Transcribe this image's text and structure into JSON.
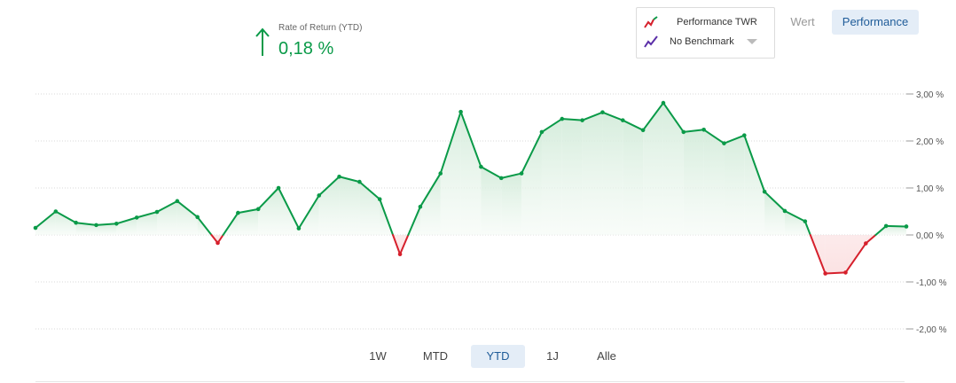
{
  "kpi": {
    "label": "Rate of Return (YTD)",
    "value": "0,18 %",
    "trend_icon": "arrow-up-icon",
    "color": "#0a9a48"
  },
  "legend": {
    "items": [
      {
        "label": "Performance TWR",
        "icon": "line-chart-icon"
      },
      {
        "label": "No Benchmark",
        "icon": "line-chart-icon"
      }
    ]
  },
  "view_toggle": {
    "wert_label": "Wert",
    "performance_label": "Performance",
    "selected": "Performance"
  },
  "periods": {
    "items": [
      "1W",
      "MTD",
      "YTD",
      "1J",
      "Alle"
    ],
    "selected": "YTD"
  },
  "colors": {
    "positive": "#0a9a48",
    "negative": "#d6202c",
    "positive_fill": "#e7f4ea",
    "negative_fill": "#fbe2e3",
    "grid": "#d9d9d9",
    "active_bg": "#e4edf7",
    "active_text": "#1f5c99"
  },
  "chart_data": {
    "type": "area",
    "title": "",
    "xlabel": "",
    "ylabel": "",
    "ylim": [
      -2.0,
      3.0
    ],
    "y_ticks": [
      3.0,
      2.0,
      1.0,
      0.0,
      -1.0,
      -2.0
    ],
    "y_tick_labels": [
      "3,00 %",
      "2,00 %",
      "1,00 %",
      "0,00 %",
      "-1,00 %",
      "-2,00 %"
    ],
    "y_axis_side": "right",
    "grid": true,
    "series": [
      {
        "values": [
          0.15,
          0.5,
          0.26,
          0.21,
          0.24,
          0.37,
          0.49,
          0.72,
          0.38,
          -0.17,
          0.47,
          0.55,
          1.0,
          0.14,
          0.84,
          1.24,
          1.13,
          0.76,
          -0.41,
          0.6,
          1.31,
          2.62,
          1.45,
          1.21,
          1.31,
          2.19,
          2.47,
          2.44,
          2.61,
          2.44,
          2.23,
          2.81,
          2.19,
          2.24,
          1.95,
          2.12,
          0.92,
          0.51,
          0.29,
          -0.82,
          -0.8,
          -0.18,
          0.19,
          0.18
        ]
      }
    ]
  }
}
